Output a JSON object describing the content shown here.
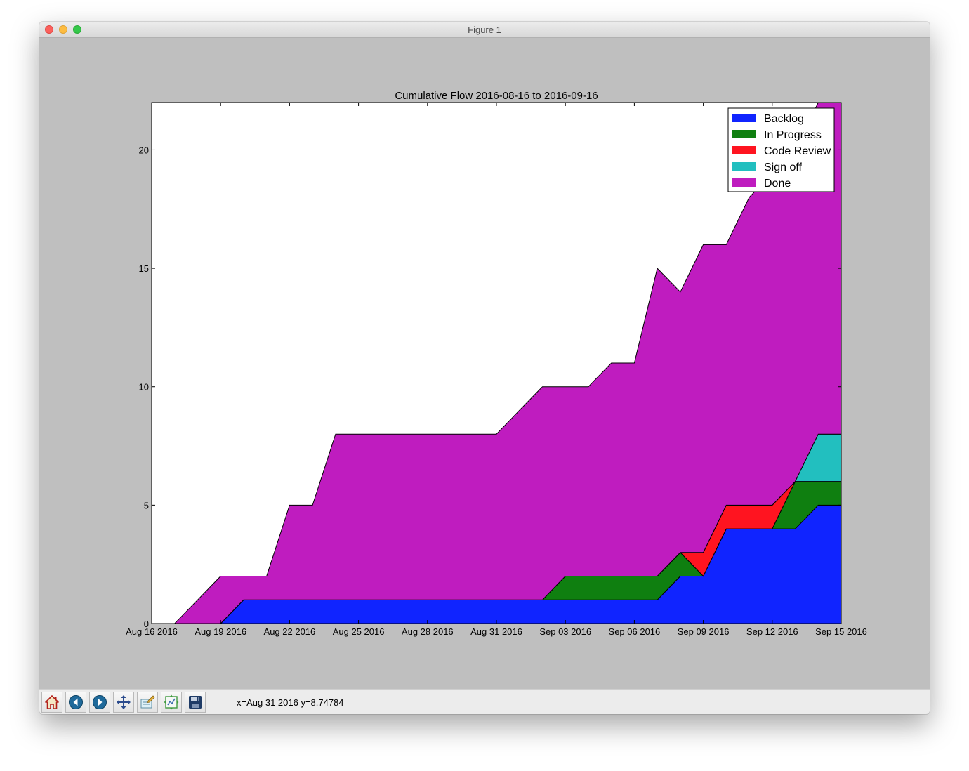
{
  "window": {
    "title": "Figure 1"
  },
  "toolbar": {
    "buttons": [
      {
        "name": "home-button",
        "icon": "home-icon"
      },
      {
        "name": "back-button",
        "icon": "back-arrow-icon"
      },
      {
        "name": "forward-button",
        "icon": "forward-arrow-icon"
      },
      {
        "name": "pan-button",
        "icon": "move-icon"
      },
      {
        "name": "zoom-button",
        "icon": "zoom-rect-icon"
      },
      {
        "name": "subplots-button",
        "icon": "subplots-icon"
      },
      {
        "name": "save-button",
        "icon": "save-icon"
      }
    ],
    "coords": "x=Aug 31 2016 y=8.74784"
  },
  "chart_data": {
    "type": "area",
    "stacked": true,
    "title": "Cumulative Flow 2016-08-16 to 2016-09-16",
    "xlabel": "",
    "ylabel": "",
    "x_tick_labels": [
      "Aug 16 2016",
      "Aug 19 2016",
      "Aug 22 2016",
      "Aug 25 2016",
      "Aug 28 2016",
      "Aug 31 2016",
      "Sep 03 2016",
      "Sep 06 2016",
      "Sep 09 2016",
      "Sep 12 2016",
      "Sep 15 2016"
    ],
    "y_ticks": [
      0,
      5,
      10,
      15,
      20
    ],
    "xlim": [
      "2016-08-16",
      "2016-09-15"
    ],
    "ylim": [
      0,
      22
    ],
    "grid": false,
    "legend_position": "top-right",
    "x": [
      "2016-08-16",
      "2016-08-17",
      "2016-08-18",
      "2016-08-19",
      "2016-08-20",
      "2016-08-21",
      "2016-08-22",
      "2016-08-23",
      "2016-08-24",
      "2016-08-25",
      "2016-08-26",
      "2016-08-27",
      "2016-08-28",
      "2016-08-29",
      "2016-08-30",
      "2016-08-31",
      "2016-09-01",
      "2016-09-02",
      "2016-09-03",
      "2016-09-04",
      "2016-09-05",
      "2016-09-06",
      "2016-09-07",
      "2016-09-08",
      "2016-09-09",
      "2016-09-10",
      "2016-09-11",
      "2016-09-12",
      "2016-09-13",
      "2016-09-14",
      "2016-09-15"
    ],
    "series": [
      {
        "name": "Backlog",
        "color": "#1024ff",
        "values": [
          0,
          0,
          0,
          0,
          1,
          1,
          1,
          1,
          1,
          1,
          1,
          1,
          1,
          1,
          1,
          1,
          1,
          1,
          1,
          1,
          1,
          1,
          1,
          2,
          2,
          4,
          4,
          4,
          4,
          5,
          5
        ]
      },
      {
        "name": "In Progress",
        "color": "#0f7f10",
        "values": [
          0,
          0,
          0,
          0,
          0,
          0,
          0,
          0,
          0,
          0,
          0,
          0,
          0,
          0,
          0,
          0,
          0,
          0,
          1,
          1,
          1,
          1,
          1,
          1,
          0,
          0,
          0,
          0,
          2,
          1,
          1
        ]
      },
      {
        "name": "Code Review",
        "color": "#ff1420",
        "values": [
          0,
          0,
          0,
          0,
          0,
          0,
          0,
          0,
          0,
          0,
          0,
          0,
          0,
          0,
          0,
          0,
          0,
          0,
          0,
          0,
          0,
          0,
          0,
          0,
          1,
          1,
          1,
          1,
          0,
          0,
          0
        ]
      },
      {
        "name": "Sign off",
        "color": "#22bfbf",
        "values": [
          0,
          0,
          0,
          0,
          0,
          0,
          0,
          0,
          0,
          0,
          0,
          0,
          0,
          0,
          0,
          0,
          0,
          0,
          0,
          0,
          0,
          0,
          0,
          0,
          0,
          0,
          0,
          0,
          0,
          2,
          2
        ]
      },
      {
        "name": "Done",
        "color": "#bf1cbf",
        "values": [
          0,
          0,
          1,
          2,
          1,
          1,
          4,
          4,
          7,
          7,
          7,
          7,
          7,
          7,
          7,
          7,
          8,
          9,
          8,
          8,
          9,
          9,
          13,
          11,
          13,
          11,
          13,
          14,
          14,
          14,
          14
        ]
      }
    ]
  }
}
